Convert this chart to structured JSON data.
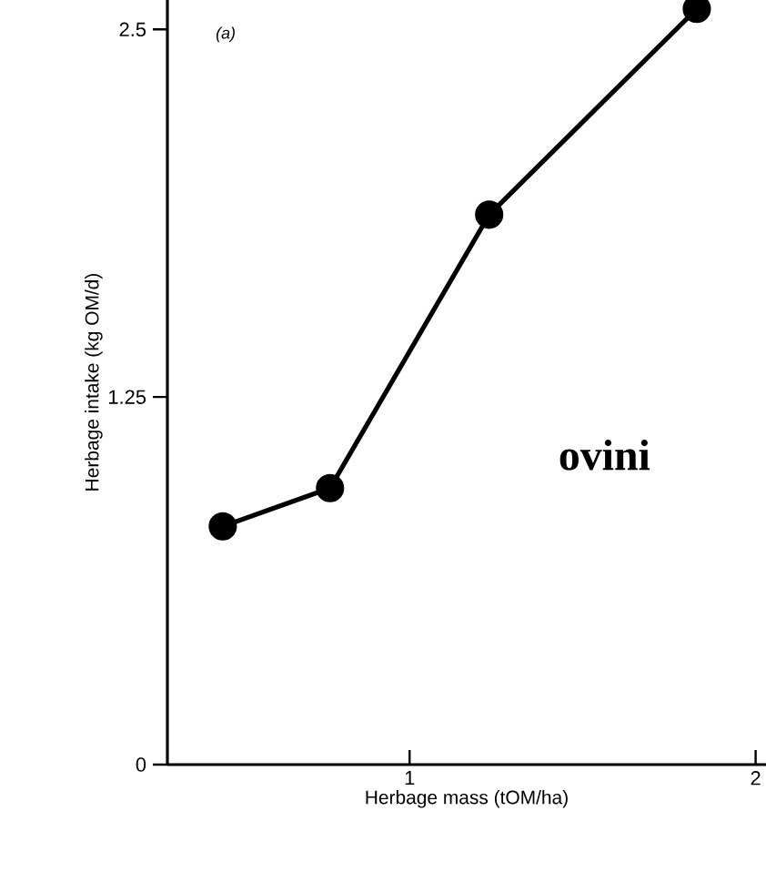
{
  "chart_data": {
    "type": "line",
    "xlabel": "Herbage mass (tOM/ha)",
    "ylabel": "Herbage intake (kg OM/d)",
    "annotations": [
      "(a)",
      "ovini"
    ],
    "x": [
      0.46,
      0.77,
      1.23,
      1.83
    ],
    "series": [
      {
        "color": "#000000",
        "values": [
          0.81,
          0.94,
          1.87,
          2.57
        ]
      }
    ],
    "xlim": [
      0.3,
      2.03
    ],
    "ylim": [
      0,
      2.6
    ],
    "xticks": [
      1,
      2
    ],
    "yticks": [
      0,
      1.25,
      2.5
    ],
    "marker": "circle",
    "line_style": "solid",
    "grid": false
  }
}
